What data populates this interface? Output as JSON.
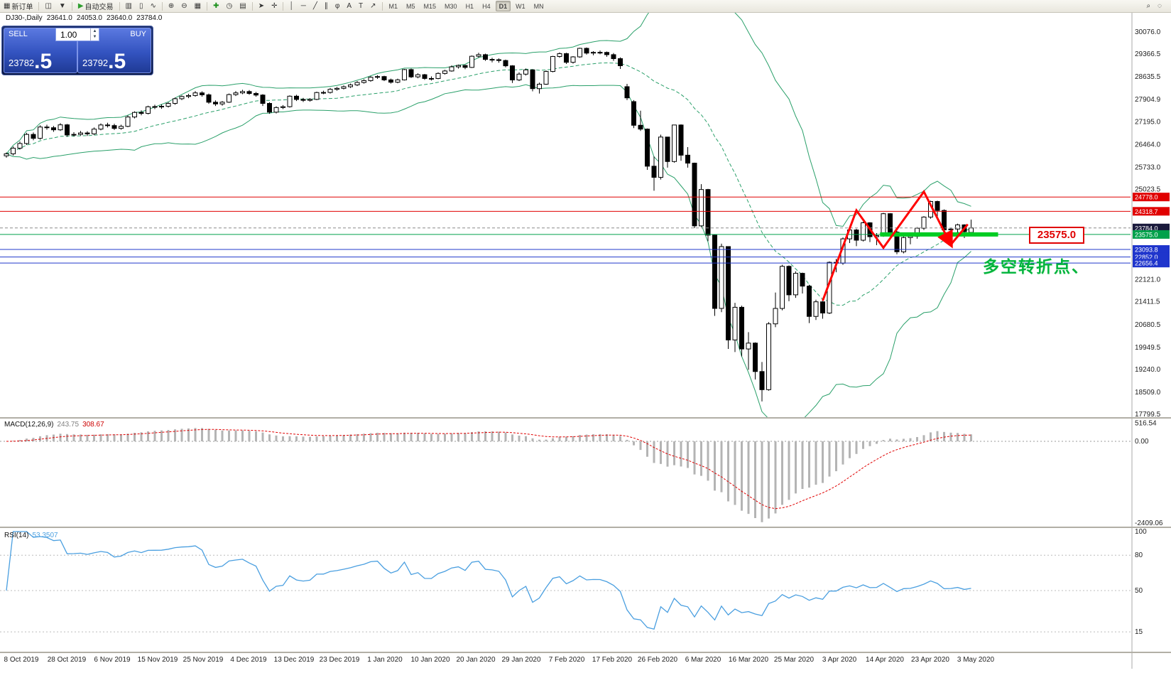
{
  "toolbar": {
    "left": [
      {
        "name": "new-order",
        "glyph": "▦",
        "label": "新订单"
      },
      {
        "sep": true
      },
      {
        "name": "charts",
        "glyph": "◫"
      },
      {
        "name": "profiles",
        "glyph": "▼"
      },
      {
        "sep": true
      },
      {
        "name": "autotrading",
        "glyph": "▶",
        "glyph_color": "#2f9e2f",
        "label": "自动交易"
      },
      {
        "sep": true
      }
    ],
    "tools": [
      {
        "name": "bar-chart",
        "glyph": "▥"
      },
      {
        "name": "candle-chart",
        "glyph": "▯"
      },
      {
        "name": "line-chart",
        "glyph": "∿"
      },
      {
        "sep": true
      },
      {
        "name": "zoom-in",
        "glyph": "⊕"
      },
      {
        "name": "zoom-out",
        "glyph": "⊖"
      },
      {
        "name": "tile-windows",
        "glyph": "▦"
      },
      {
        "sep": true
      },
      {
        "name": "add-indicator",
        "glyph": "✚",
        "glyph_color": "#1a8f1a"
      },
      {
        "name": "periods",
        "glyph": "◷"
      },
      {
        "name": "templates",
        "glyph": "▤"
      },
      {
        "sep": true
      },
      {
        "name": "cursor",
        "glyph": "➤"
      },
      {
        "name": "crosshair",
        "glyph": "✛"
      },
      {
        "sep": true
      },
      {
        "name": "vertical-line",
        "glyph": "│"
      },
      {
        "name": "horizontal-line",
        "glyph": "─"
      },
      {
        "name": "trendline",
        "glyph": "╱"
      },
      {
        "name": "equidistant-channel",
        "glyph": "∥"
      },
      {
        "name": "fibonacci",
        "glyph": "φ"
      },
      {
        "name": "text",
        "glyph": "A"
      },
      {
        "name": "text-label",
        "glyph": "T"
      },
      {
        "name": "arrows",
        "glyph": "↗"
      },
      {
        "sep": true
      }
    ],
    "timeframes": [
      "M1",
      "M5",
      "M15",
      "M30",
      "H1",
      "H4",
      "D1",
      "W1",
      "MN"
    ],
    "active_timeframe": "D1",
    "right": [
      {
        "name": "search",
        "glyph": "⌕"
      },
      {
        "name": "quick-help",
        "glyph": "◌"
      }
    ]
  },
  "chart_info": {
    "symbol_period": "DJ30-,Daily",
    "open": "23641.0",
    "high": "24053.0",
    "low": "23640.0",
    "close": "23784.0"
  },
  "trade_panel": {
    "sell_label": "SELL",
    "buy_label": "BUY",
    "volume": "1.00",
    "sell_price_main": "23782",
    "sell_price_frac": ".5",
    "buy_price_main": "23792",
    "buy_price_frac": ".5"
  },
  "price_axis": {
    "regular": [
      "30076.0",
      "29366.5",
      "28635.5",
      "27904.9",
      "27195.0",
      "26464.0",
      "25733.0",
      "25023.5",
      "22121.0",
      "21411.5",
      "20680.5",
      "19949.5",
      "19240.0",
      "18509.0",
      "17799.5"
    ],
    "highlighted": [
      {
        "value": 24778.0,
        "text": "24778.0",
        "bg": "#e00000"
      },
      {
        "value": 24318.7,
        "text": "24318.7",
        "bg": "#e00000"
      },
      {
        "value": 23784.0,
        "text": "23784.0",
        "bg": "#1a1a3c"
      },
      {
        "value": 23575.0,
        "text": "23575.0",
        "bg": "#00a14b"
      },
      {
        "value": 23093.8,
        "text": "23093.8",
        "bg": "#1f35cc"
      },
      {
        "value": 22852.0,
        "text": "22852.0",
        "bg": "#1f35cc"
      },
      {
        "value": 22656.4,
        "text": "22656.4",
        "bg": "#1f35cc"
      }
    ]
  },
  "x_axis_dates": [
    "8 Oct 2019",
    "28 Oct 2019",
    "6 Nov 2019",
    "15 Nov 2019",
    "25 Nov 2019",
    "4 Dec 2019",
    "13 Dec 2019",
    "23 Dec 2019",
    "1 Jan 2020",
    "10 Jan 2020",
    "20 Jan 2020",
    "29 Jan 2020",
    "7 Feb 2020",
    "17 Feb 2020",
    "26 Feb 2020",
    "6 Mar 2020",
    "16 Mar 2020",
    "25 Mar 2020",
    "3 Apr 2020",
    "14 Apr 2020",
    "23 Apr 2020",
    "3 May 2020"
  ],
  "macd": {
    "label": "MACD(12,26,9)",
    "value_main": "243.75",
    "value_signal": "308.67",
    "axis": [
      "516.54",
      "0.00",
      "-2409.06"
    ],
    "ymax": 516.54,
    "ymin": -2409.06
  },
  "rsi": {
    "label": "RSI(14)",
    "value": "53.3507",
    "axis": [
      "100",
      "80",
      "50",
      "15"
    ],
    "levels": [
      80,
      50,
      15
    ]
  },
  "annotations": {
    "price_label_box": "23575.0",
    "note_text": "多空转折点、",
    "red_lines": [
      24778.0,
      24318.7
    ],
    "green_line": 23575.0,
    "blue_lines": [
      23093.8,
      22852.0,
      22656.4
    ],
    "current_price": 23784.0,
    "thick_green": {
      "price": 23575.0,
      "from_bar": 129.5,
      "to_bar": 147
    },
    "zigzag": [
      [
        121,
        21450
      ],
      [
        126,
        24350
      ],
      [
        130,
        23150
      ],
      [
        136,
        24950
      ],
      [
        140,
        23250
      ]
    ],
    "zigzag_tail": [
      [
        140,
        23250
      ],
      [
        142.5,
        23900
      ]
    ]
  },
  "colors": {
    "bull_candle": "#ffffff",
    "bear_candle": "#000000",
    "candle_border": "#000000",
    "bollinger": "#2aa06a",
    "red_line": "#e00000",
    "blue_line": "#2038cc",
    "green_line": "#00a14b",
    "thick_green": "#00cc22",
    "zigzag": "#ff0000",
    "macd_bar": "#b4b4b4",
    "macd_signal": "#e00000",
    "rsi_line": "#4a9fe0",
    "axis_text": "#222222"
  },
  "chart_data": [
    {
      "type": "candlestick",
      "title": "DJ30- Daily",
      "ylim": [
        17799.5,
        30076.0
      ],
      "overlays": {
        "bollinger_bands": {
          "period": 20,
          "deviation": 2
        }
      },
      "ohlc": [
        [
          26100,
          26210,
          26040,
          26164
        ],
        [
          26164,
          26400,
          26110,
          26346
        ],
        [
          26346,
          26560,
          26300,
          26496
        ],
        [
          26496,
          26840,
          26450,
          26787
        ],
        [
          26787,
          26850,
          26600,
          26662
        ],
        [
          26662,
          27080,
          26620,
          27025
        ],
        [
          27025,
          27100,
          26940,
          27002
        ],
        [
          27002,
          27060,
          26870,
          26935
        ],
        [
          26935,
          27150,
          26900,
          27095
        ],
        [
          27095,
          27120,
          26710,
          26770
        ],
        [
          26770,
          26860,
          26720,
          26788
        ],
        [
          26788,
          26900,
          26750,
          26834
        ],
        [
          26834,
          26890,
          26740,
          26806
        ],
        [
          26806,
          27010,
          26770,
          26958
        ],
        [
          26958,
          27140,
          26920,
          27091
        ],
        [
          27091,
          27160,
          27010,
          27071
        ],
        [
          27071,
          27130,
          26930,
          26980
        ],
        [
          26980,
          27100,
          26940,
          27046
        ],
        [
          27046,
          27400,
          27020,
          27347
        ],
        [
          27347,
          27530,
          27300,
          27493
        ],
        [
          27493,
          27560,
          27400,
          27462
        ],
        [
          27462,
          27710,
          27430,
          27675
        ],
        [
          27675,
          27740,
          27600,
          27681
        ],
        [
          27681,
          27750,
          27610,
          27691
        ],
        [
          27691,
          27820,
          27650,
          27784
        ],
        [
          27784,
          27970,
          27740,
          27934
        ],
        [
          27934,
          28040,
          27890,
          28005
        ],
        [
          28005,
          28090,
          27950,
          28036
        ],
        [
          28036,
          28180,
          28000,
          28121
        ],
        [
          28121,
          28170,
          28000,
          28059
        ],
        [
          28059,
          28100,
          27770,
          27821
        ],
        [
          27821,
          27880,
          27700,
          27766
        ],
        [
          27766,
          27860,
          27710,
          27822
        ],
        [
          27822,
          28100,
          27800,
          28066
        ],
        [
          28066,
          28180,
          28020,
          28121
        ],
        [
          28121,
          28220,
          28080,
          28164
        ],
        [
          28164,
          28210,
          28060,
          28102
        ],
        [
          28102,
          28150,
          28000,
          28051
        ],
        [
          28051,
          28080,
          27700,
          27783
        ],
        [
          27783,
          27820,
          27450,
          27502
        ],
        [
          27502,
          27690,
          27460,
          27650
        ],
        [
          27650,
          27730,
          27600,
          27678
        ],
        [
          27678,
          28040,
          27650,
          28015
        ],
        [
          28015,
          28060,
          27860,
          27910
        ],
        [
          27910,
          27960,
          27830,
          27882
        ],
        [
          27882,
          27950,
          27840,
          27912
        ],
        [
          27912,
          28160,
          27890,
          28132
        ],
        [
          28132,
          28190,
          28080,
          28135
        ],
        [
          28135,
          28280,
          28100,
          28236
        ],
        [
          28236,
          28310,
          28190,
          28267
        ],
        [
          28267,
          28360,
          28230,
          28319
        ],
        [
          28319,
          28420,
          28280,
          28377
        ],
        [
          28377,
          28500,
          28340,
          28455
        ],
        [
          28455,
          28560,
          28420,
          28515
        ],
        [
          28515,
          28660,
          28480,
          28622
        ],
        [
          28622,
          28690,
          28570,
          28645
        ],
        [
          28645,
          28670,
          28500,
          28538
        ],
        [
          28538,
          28580,
          28420,
          28463
        ],
        [
          28463,
          28580,
          28430,
          28538
        ],
        [
          28538,
          28890,
          28520,
          28869
        ],
        [
          28869,
          28900,
          28600,
          28635
        ],
        [
          28635,
          28750,
          28590,
          28704
        ],
        [
          28704,
          28730,
          28540,
          28584
        ],
        [
          28584,
          28650,
          28520,
          28583
        ],
        [
          28583,
          28780,
          28560,
          28745
        ],
        [
          28745,
          28860,
          28710,
          28824
        ],
        [
          28824,
          29000,
          28800,
          28957
        ],
        [
          28957,
          29030,
          28900,
          29001
        ],
        [
          29001,
          29020,
          28880,
          28939
        ],
        [
          28939,
          29320,
          28920,
          29297
        ],
        [
          29297,
          29410,
          29250,
          29348
        ],
        [
          29348,
          29380,
          29150,
          29196
        ],
        [
          29196,
          29250,
          29100,
          29186
        ],
        [
          29186,
          29230,
          29090,
          29160
        ],
        [
          29160,
          29190,
          28940,
          28990
        ],
        [
          28990,
          29010,
          28440,
          28536
        ],
        [
          28536,
          28780,
          28500,
          28723
        ],
        [
          28723,
          28900,
          28680,
          28859
        ],
        [
          28859,
          28880,
          28170,
          28257
        ],
        [
          28257,
          28450,
          28100,
          28400
        ],
        [
          28400,
          28840,
          28380,
          28808
        ],
        [
          28808,
          29310,
          28780,
          29290
        ],
        [
          29290,
          29420,
          29250,
          29380
        ],
        [
          29380,
          29410,
          29050,
          29103
        ],
        [
          29103,
          29300,
          29060,
          29277
        ],
        [
          29277,
          29570,
          29250,
          29551
        ],
        [
          29551,
          29580,
          29350,
          29398
        ],
        [
          29398,
          29460,
          29330,
          29423
        ],
        [
          29423,
          29480,
          29360,
          29420
        ],
        [
          29420,
          29450,
          29280,
          29348
        ],
        [
          29348,
          29400,
          29150,
          29220
        ],
        [
          29220,
          29260,
          28890,
          28992
        ],
        [
          28320,
          28410,
          27890,
          27961
        ],
        [
          27840,
          27890,
          26990,
          27081
        ],
        [
          27081,
          27550,
          26900,
          26958
        ],
        [
          26958,
          26980,
          25650,
          25767
        ],
        [
          25767,
          26080,
          24980,
          25409
        ],
        [
          25409,
          26780,
          25340,
          26703
        ],
        [
          26703,
          26710,
          25720,
          25917
        ],
        [
          25917,
          27100,
          25880,
          27090
        ],
        [
          27090,
          27110,
          25940,
          26121
        ],
        [
          26121,
          26380,
          25720,
          25865
        ],
        [
          25865,
          25880,
          23780,
          23851
        ],
        [
          23851,
          25190,
          23820,
          25018
        ],
        [
          25018,
          25040,
          23360,
          23553
        ],
        [
          23553,
          23580,
          20960,
          21201
        ],
        [
          21201,
          23280,
          21080,
          23186
        ],
        [
          23186,
          23190,
          19900,
          20189
        ],
        [
          20189,
          21380,
          19800,
          21237
        ],
        [
          21237,
          21290,
          19660,
          19899
        ],
        [
          19899,
          20440,
          19230,
          20087
        ],
        [
          20087,
          20110,
          18920,
          19174
        ],
        [
          19174,
          19480,
          18213,
          18592
        ],
        [
          18592,
          20760,
          18560,
          20705
        ],
        [
          20705,
          21710,
          20600,
          21200
        ],
        [
          21200,
          22600,
          21140,
          22552
        ],
        [
          22552,
          22580,
          21430,
          21637
        ],
        [
          21637,
          22390,
          21540,
          22327
        ],
        [
          22327,
          22350,
          21680,
          21917
        ],
        [
          21917,
          21960,
          20730,
          20944
        ],
        [
          20944,
          21480,
          20830,
          21413
        ],
        [
          21413,
          21440,
          20870,
          21053
        ],
        [
          21053,
          22710,
          21020,
          22680
        ],
        [
          22680,
          22790,
          22360,
          22654
        ],
        [
          22654,
          23480,
          22600,
          23434
        ],
        [
          23434,
          23760,
          23300,
          23719
        ],
        [
          23719,
          23760,
          23200,
          23391
        ],
        [
          23391,
          23980,
          23350,
          23950
        ],
        [
          23950,
          23970,
          23330,
          23504
        ],
        [
          23504,
          23620,
          23230,
          23538
        ],
        [
          23538,
          24270,
          23500,
          24242
        ],
        [
          24242,
          24260,
          23550,
          23651
        ],
        [
          23651,
          23690,
          22940,
          23019
        ],
        [
          23019,
          23520,
          22970,
          23476
        ],
        [
          23476,
          23570,
          23260,
          23515
        ],
        [
          23515,
          23810,
          23440,
          23776
        ],
        [
          23776,
          24160,
          23720,
          24134
        ],
        [
          24134,
          24660,
          24080,
          24634
        ],
        [
          24634,
          24660,
          24070,
          24346
        ],
        [
          24346,
          24380,
          23610,
          23724
        ],
        [
          23724,
          23780,
          23360,
          23750
        ],
        [
          23750,
          23920,
          23560,
          23883
        ],
        [
          23883,
          23900,
          23460,
          23665
        ],
        [
          23641,
          24053,
          23640,
          23784
        ]
      ]
    },
    {
      "type": "bar",
      "name": "MACD(12,26,9)",
      "derived_from": "ohlc closes (EMA12-EMA26, signal EMA9)",
      "last_values": {
        "macd": 243.75,
        "signal": 308.67
      },
      "ylim": [
        -2409.06,
        516.54
      ]
    },
    {
      "type": "line",
      "name": "RSI(14)",
      "derived_from": "ohlc closes (Wilder RSI 14)",
      "last_value": 53.3507,
      "levels": [
        80,
        50,
        15
      ],
      "ylim": [
        0,
        100
      ]
    }
  ]
}
